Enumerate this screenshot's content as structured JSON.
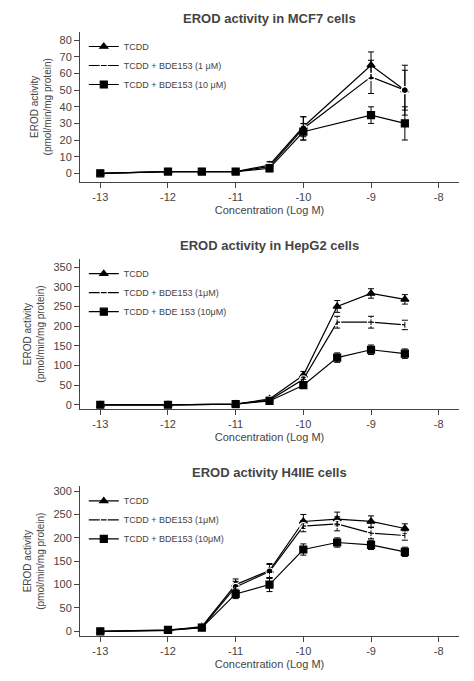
{
  "chart_data": [
    {
      "type": "line",
      "title": "EROD activity in MCF7 cells",
      "x_label": "Concentration (Log M)",
      "y_label": "EROD activity\n(pmol/min/mg protein)",
      "xlim": [
        -13.3,
        -7.7
      ],
      "ylim": [
        -5,
        85
      ],
      "xticks": [
        -13,
        -12,
        -11,
        -10,
        -9,
        -8
      ],
      "yticks": [
        0,
        10,
        20,
        30,
        40,
        50,
        60,
        70,
        80
      ],
      "grid": false,
      "legend": "upper left",
      "series": [
        {
          "name": "TCDD",
          "color": "#000000",
          "marker": "triangle-up",
          "x": [
            -13,
            -12,
            -11.5,
            -11,
            -10.5,
            -10,
            -9,
            -8.5
          ],
          "values": [
            0,
            1,
            1,
            1,
            5,
            28,
            65,
            50
          ],
          "error": [
            0,
            0.5,
            0.5,
            0.5,
            2,
            6,
            8,
            12
          ]
        },
        {
          "name": "TCDD + BDE153 (1 μM)",
          "color": "#000000",
          "marker": "circle-open",
          "x": [
            -13,
            -12,
            -11.5,
            -11,
            -10.5,
            -10,
            -9,
            -8.5
          ],
          "values": [
            0,
            1,
            1,
            1,
            4,
            27,
            58,
            50
          ],
          "error": [
            0,
            0.5,
            0.5,
            0.5,
            2,
            7,
            10,
            15
          ]
        },
        {
          "name": "TCDD + BDE153 (10 μM)",
          "color": "#000000",
          "marker": "square",
          "x": [
            -13,
            -12,
            -11.5,
            -11,
            -10.5,
            -10,
            -9,
            -8.5
          ],
          "values": [
            0,
            1,
            1,
            1,
            3,
            25,
            35,
            30
          ],
          "error": [
            0,
            0.5,
            0.5,
            0.5,
            2,
            5,
            5,
            10
          ]
        }
      ]
    },
    {
      "type": "line",
      "title": "EROD activity in HepG2 cells",
      "x_label": "Concentration (Log M)",
      "y_label": "EROD activity\n(pmol/min/mg protein)",
      "xlim": [
        -13.3,
        -7.7
      ],
      "ylim": [
        -10,
        370
      ],
      "xticks": [
        -13,
        -12,
        -11,
        -10,
        -9,
        -8
      ],
      "yticks": [
        0,
        50,
        100,
        150,
        200,
        250,
        300,
        350
      ],
      "grid": false,
      "legend": "upper left",
      "series": [
        {
          "name": "TCDD",
          "color": "#000000",
          "marker": "triangle-up",
          "x": [
            -13,
            -12,
            -11,
            -10.5,
            -10,
            -9.5,
            -9,
            -8.5
          ],
          "values": [
            0,
            0,
            2,
            15,
            75,
            250,
            283,
            268
          ],
          "error": [
            0,
            1,
            1,
            5,
            10,
            15,
            12,
            12
          ]
        },
        {
          "name": "TCDD + BDE153 (1μM)",
          "color": "#000000",
          "marker": "circle-open",
          "x": [
            -13,
            -12,
            -11,
            -10.5,
            -10,
            -9.5,
            -9,
            -8.5
          ],
          "values": [
            0,
            0,
            2,
            12,
            65,
            210,
            210,
            203
          ],
          "error": [
            0,
            1,
            1,
            5,
            10,
            15,
            15,
            12
          ]
        },
        {
          "name": "TCDD + BDE 153 (10μM)",
          "color": "#000000",
          "marker": "square",
          "x": [
            -13,
            -12,
            -11,
            -10.5,
            -10,
            -9.5,
            -9,
            -8.5
          ],
          "values": [
            0,
            0,
            2,
            10,
            50,
            120,
            140,
            130
          ],
          "error": [
            0,
            1,
            1,
            5,
            8,
            12,
            12,
            12
          ]
        }
      ]
    },
    {
      "type": "line",
      "title": "EROD activity H4IIE cells",
      "x_label": "Concentration (Log M)",
      "y_label": "EROD activity\n(pmol/min/mg protein)",
      "xlim": [
        -13.3,
        -7.7
      ],
      "ylim": [
        -10,
        310
      ],
      "xticks": [
        -13,
        -12,
        -11,
        -10,
        -9,
        -8
      ],
      "yticks": [
        0,
        50,
        100,
        150,
        200,
        250,
        300
      ],
      "grid": false,
      "legend": "upper left",
      "series": [
        {
          "name": "TCDD",
          "color": "#000000",
          "marker": "triangle-up",
          "x": [
            -13,
            -12,
            -11.5,
            -11,
            -10.5,
            -10,
            -9.5,
            -9,
            -8.5
          ],
          "values": [
            0,
            2,
            10,
            100,
            130,
            235,
            240,
            235,
            220
          ],
          "error": [
            0,
            1,
            5,
            12,
            15,
            15,
            15,
            12,
            10
          ]
        },
        {
          "name": "TCDD + BDE153 (1μM)",
          "color": "#000000",
          "marker": "circle-open",
          "x": [
            -13,
            -12,
            -11.5,
            -11,
            -10.5,
            -10,
            -9.5,
            -9,
            -8.5
          ],
          "values": [
            0,
            2,
            8,
            95,
            128,
            225,
            230,
            210,
            205
          ],
          "error": [
            0,
            1,
            5,
            12,
            15,
            12,
            15,
            12,
            10
          ]
        },
        {
          "name": "TCDD + BDE153 (10μM)",
          "color": "#000000",
          "marker": "square",
          "x": [
            -13,
            -12,
            -11.5,
            -11,
            -10.5,
            -10,
            -9.5,
            -9,
            -8.5
          ],
          "values": [
            0,
            3,
            8,
            80,
            100,
            175,
            190,
            185,
            170
          ],
          "error": [
            0,
            1,
            5,
            10,
            15,
            12,
            10,
            10,
            10
          ]
        }
      ]
    }
  ]
}
